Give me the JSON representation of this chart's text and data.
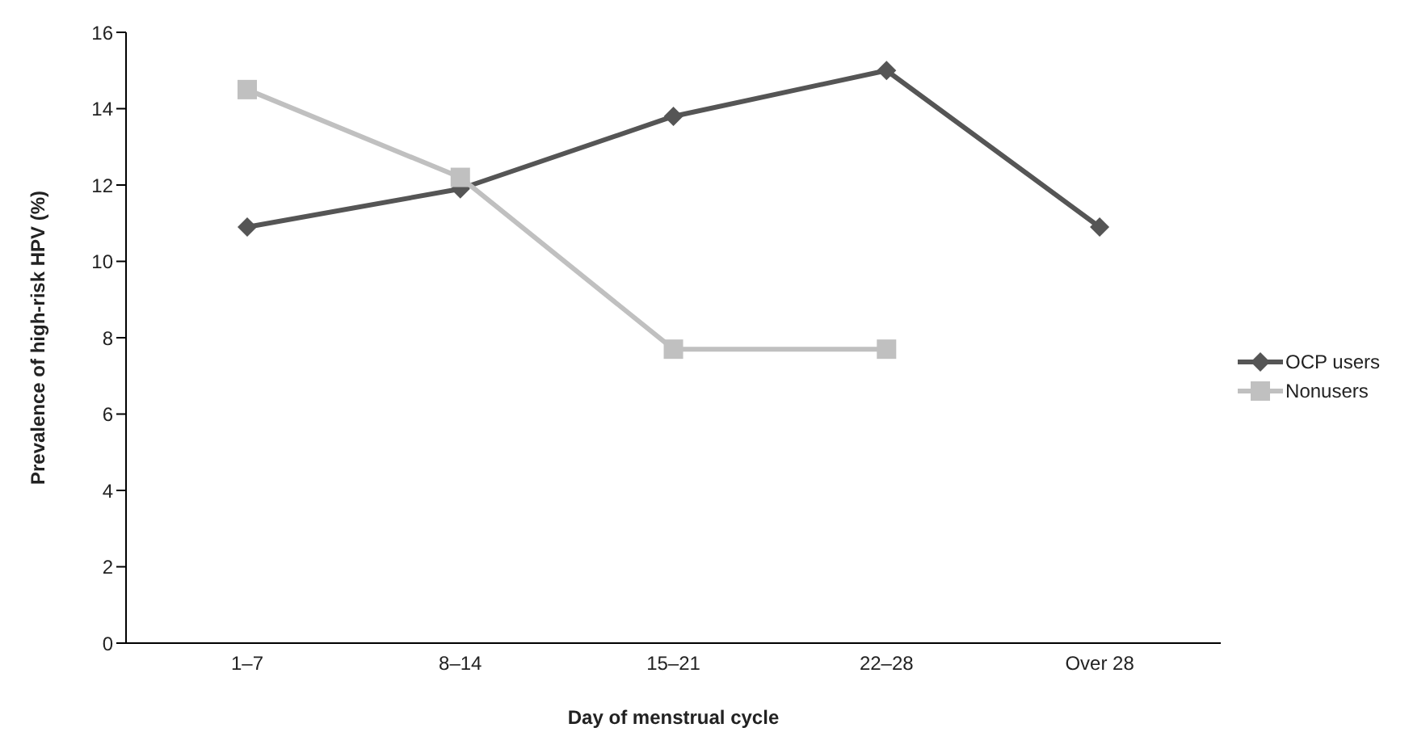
{
  "chart_data": {
    "type": "line",
    "xlabel": "Day of menstrual cycle",
    "ylabel": "Prevalence of high-risk HPV (%)",
    "categories": [
      "1–7",
      "8–14",
      "15–21",
      "22–28",
      "Over 28"
    ],
    "series": [
      {
        "name": "OCP users",
        "color": "#555555",
        "marker": "diamond",
        "values": [
          10.9,
          11.9,
          13.8,
          15.0,
          10.9
        ]
      },
      {
        "name": "Nonusers",
        "color": "#c0c0c0",
        "marker": "square",
        "values": [
          14.5,
          12.2,
          7.7,
          7.7,
          null
        ]
      }
    ],
    "ylim": [
      0,
      16
    ],
    "yticks": [
      0,
      2,
      4,
      6,
      8,
      10,
      12,
      14,
      16
    ],
    "grid": false,
    "legend": "right"
  }
}
